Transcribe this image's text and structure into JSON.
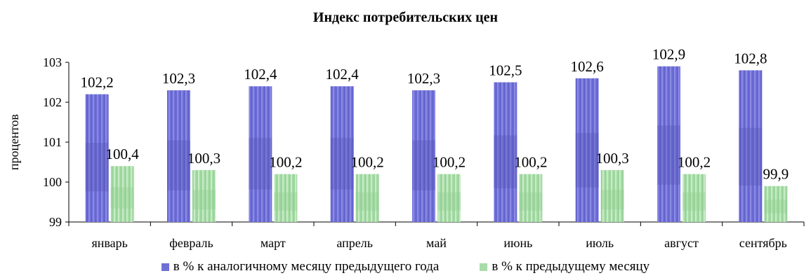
{
  "chart_data": {
    "type": "bar",
    "title": "Индекс потребительских цен",
    "ylabel": "процентов",
    "ylim": [
      99,
      103
    ],
    "yticks": [
      99,
      100,
      101,
      102,
      103
    ],
    "categories": [
      "январь",
      "февраль",
      "март",
      "апрель",
      "май",
      "июнь",
      "июль",
      "август",
      "сентябрь"
    ],
    "series": [
      {
        "name": "в % к аналогичному месяцу предыдущего года",
        "values": [
          102.2,
          102.3,
          102.4,
          102.4,
          102.3,
          102.5,
          102.6,
          102.9,
          102.8
        ],
        "labels": [
          "102,2",
          "102,3",
          "102,4",
          "102,4",
          "102,3",
          "102,5",
          "102,6",
          "102,9",
          "102,8"
        ],
        "color": "#6f6fd8",
        "dark": "#5252b8",
        "light": "#8e8ee6"
      },
      {
        "name": "в % к предыдущему месяцу",
        "values": [
          100.4,
          100.3,
          100.2,
          100.2,
          100.2,
          100.2,
          100.3,
          100.2,
          99.9
        ],
        "labels": [
          "100,4",
          "100,3",
          "100,2",
          "100,2",
          "100,2",
          "100,2",
          "100,3",
          "100,2",
          "99,9"
        ],
        "color": "#a8dca8",
        "dark": "#8fcf8f",
        "light": "#c4ecc4"
      }
    ],
    "grid": false,
    "legend_position": "bottom"
  }
}
